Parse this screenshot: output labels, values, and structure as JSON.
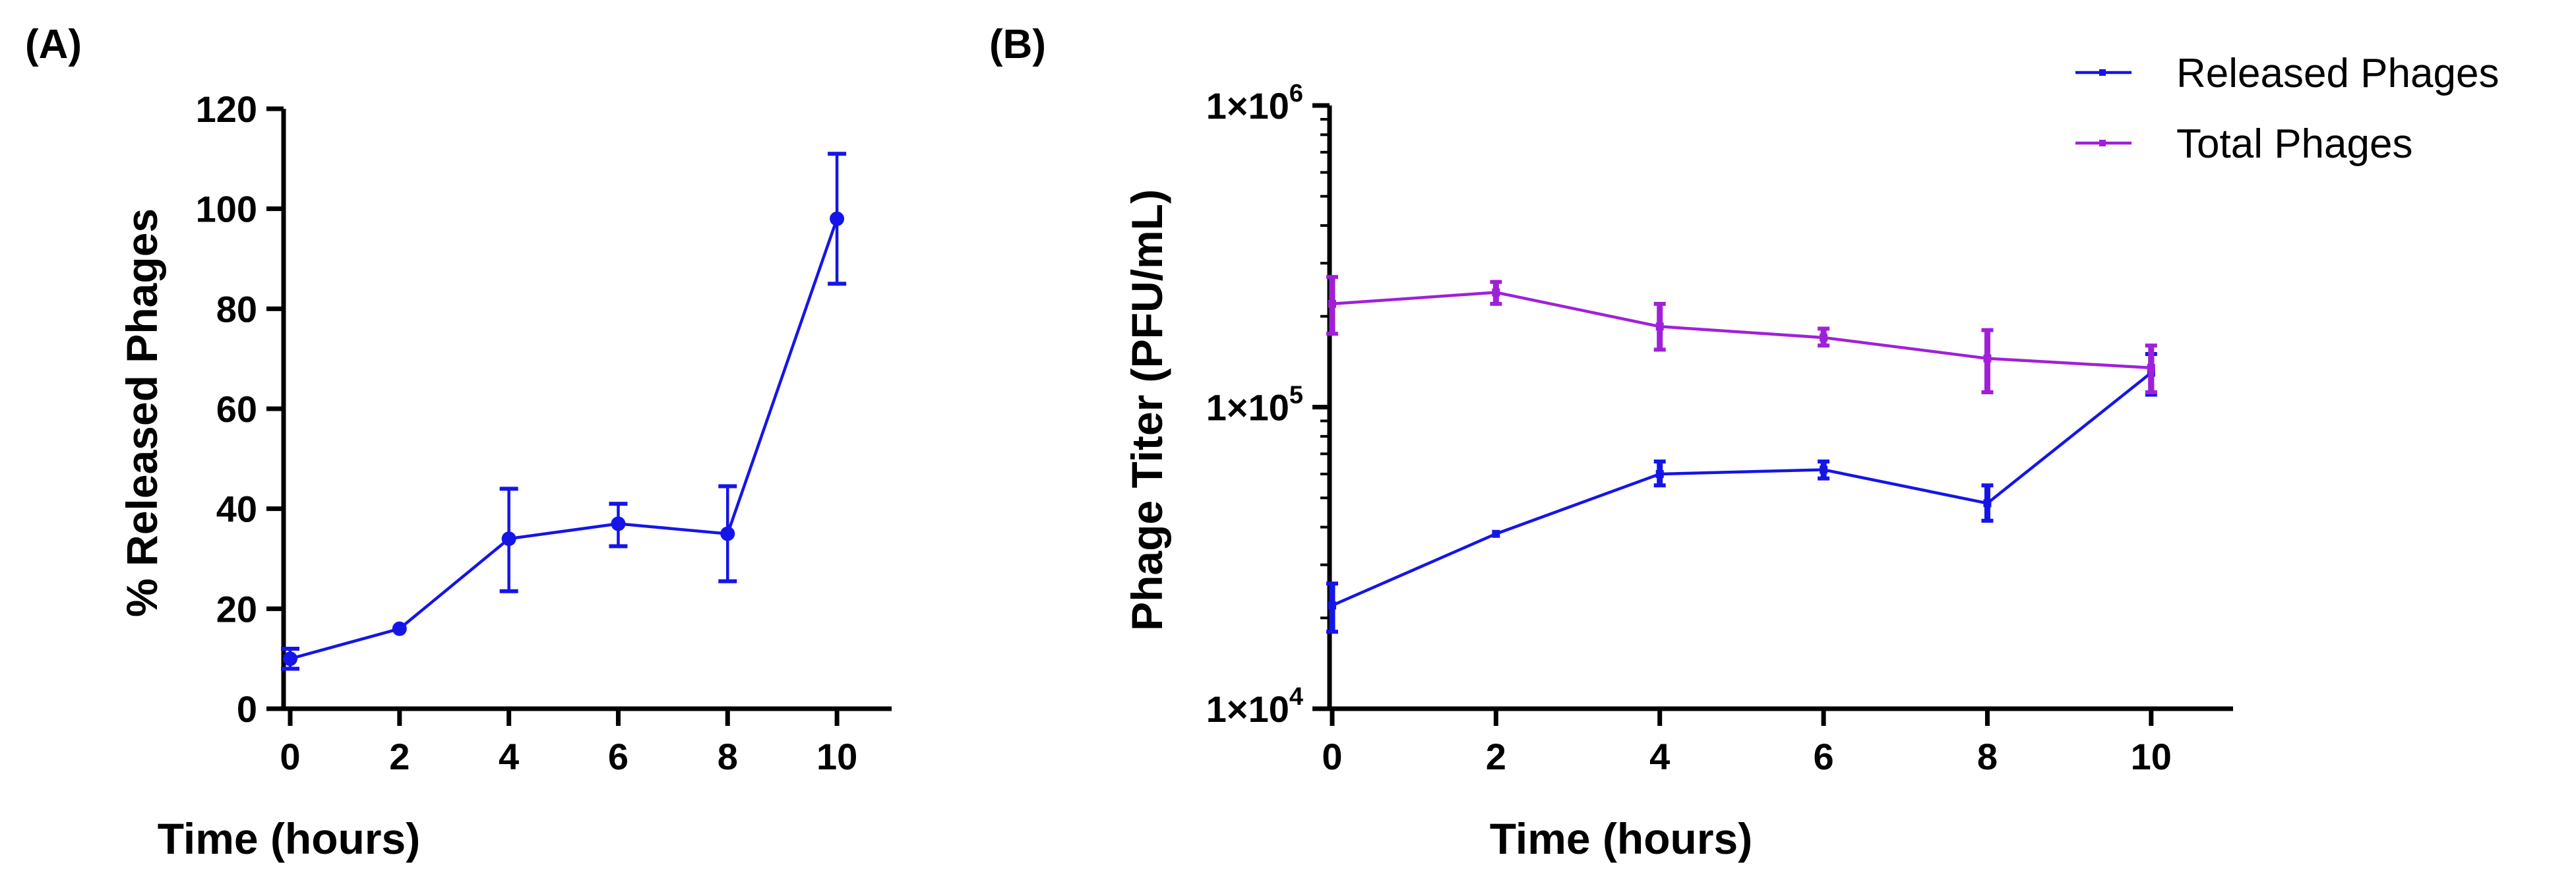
{
  "chart_data": [
    {
      "panel_label": "(A)",
      "type": "line",
      "title": "",
      "xlabel": "Time (hours)",
      "ylabel": "% Released Phages",
      "x": [
        0,
        2,
        4,
        6,
        8,
        10
      ],
      "xlim": [
        0,
        11
      ],
      "ylim": [
        0,
        120
      ],
      "x_ticks": [
        "0",
        "2",
        "4",
        "6",
        "8",
        "10"
      ],
      "y_ticks": [
        "0",
        "20",
        "40",
        "60",
        "80",
        "100",
        "120"
      ],
      "series": [
        {
          "name": "Released Phages",
          "color": "#1515e8",
          "values": [
            10,
            16,
            34,
            37,
            35,
            98
          ],
          "error_low": [
            8,
            16,
            23.5,
            32.5,
            25.5,
            85
          ],
          "error_high": [
            12,
            16,
            44,
            41,
            44.5,
            111
          ]
        }
      ],
      "grid": false
    },
    {
      "panel_label": "(B)",
      "type": "line",
      "title": "",
      "xlabel": "Time (hours)",
      "ylabel": "Phage Titer (PFU/mL)",
      "yscale": "log",
      "x": [
        0,
        2,
        4,
        6,
        8,
        10
      ],
      "xlim": [
        0,
        11
      ],
      "ylim": [
        10000,
        1000000
      ],
      "x_ticks": [
        "0",
        "2",
        "4",
        "6",
        "8",
        "10"
      ],
      "y_ticks": [
        {
          "value": 10000,
          "base": "1×10",
          "exp": "4"
        },
        {
          "value": 100000,
          "base": "1×10",
          "exp": "5"
        },
        {
          "value": 1000000,
          "base": "1×10",
          "exp": "6"
        }
      ],
      "legend_position": "top-right",
      "series": [
        {
          "name": "Released Phages",
          "color": "#1515e8",
          "values": [
            22000,
            38000,
            60000,
            62000,
            48000,
            130000
          ],
          "error_low": [
            18000,
            38000,
            55000,
            58000,
            42000,
            110000
          ],
          "error_high": [
            26000,
            38000,
            66000,
            66000,
            55000,
            150000
          ]
        },
        {
          "name": "Total Phages",
          "color": "#a020d8",
          "values": [
            220000,
            240000,
            185000,
            170000,
            145000,
            135000
          ],
          "error_low": [
            175000,
            220000,
            155000,
            160000,
            112000,
            112000
          ],
          "error_high": [
            270000,
            260000,
            220000,
            182000,
            180000,
            160000
          ]
        }
      ],
      "grid": false
    }
  ]
}
